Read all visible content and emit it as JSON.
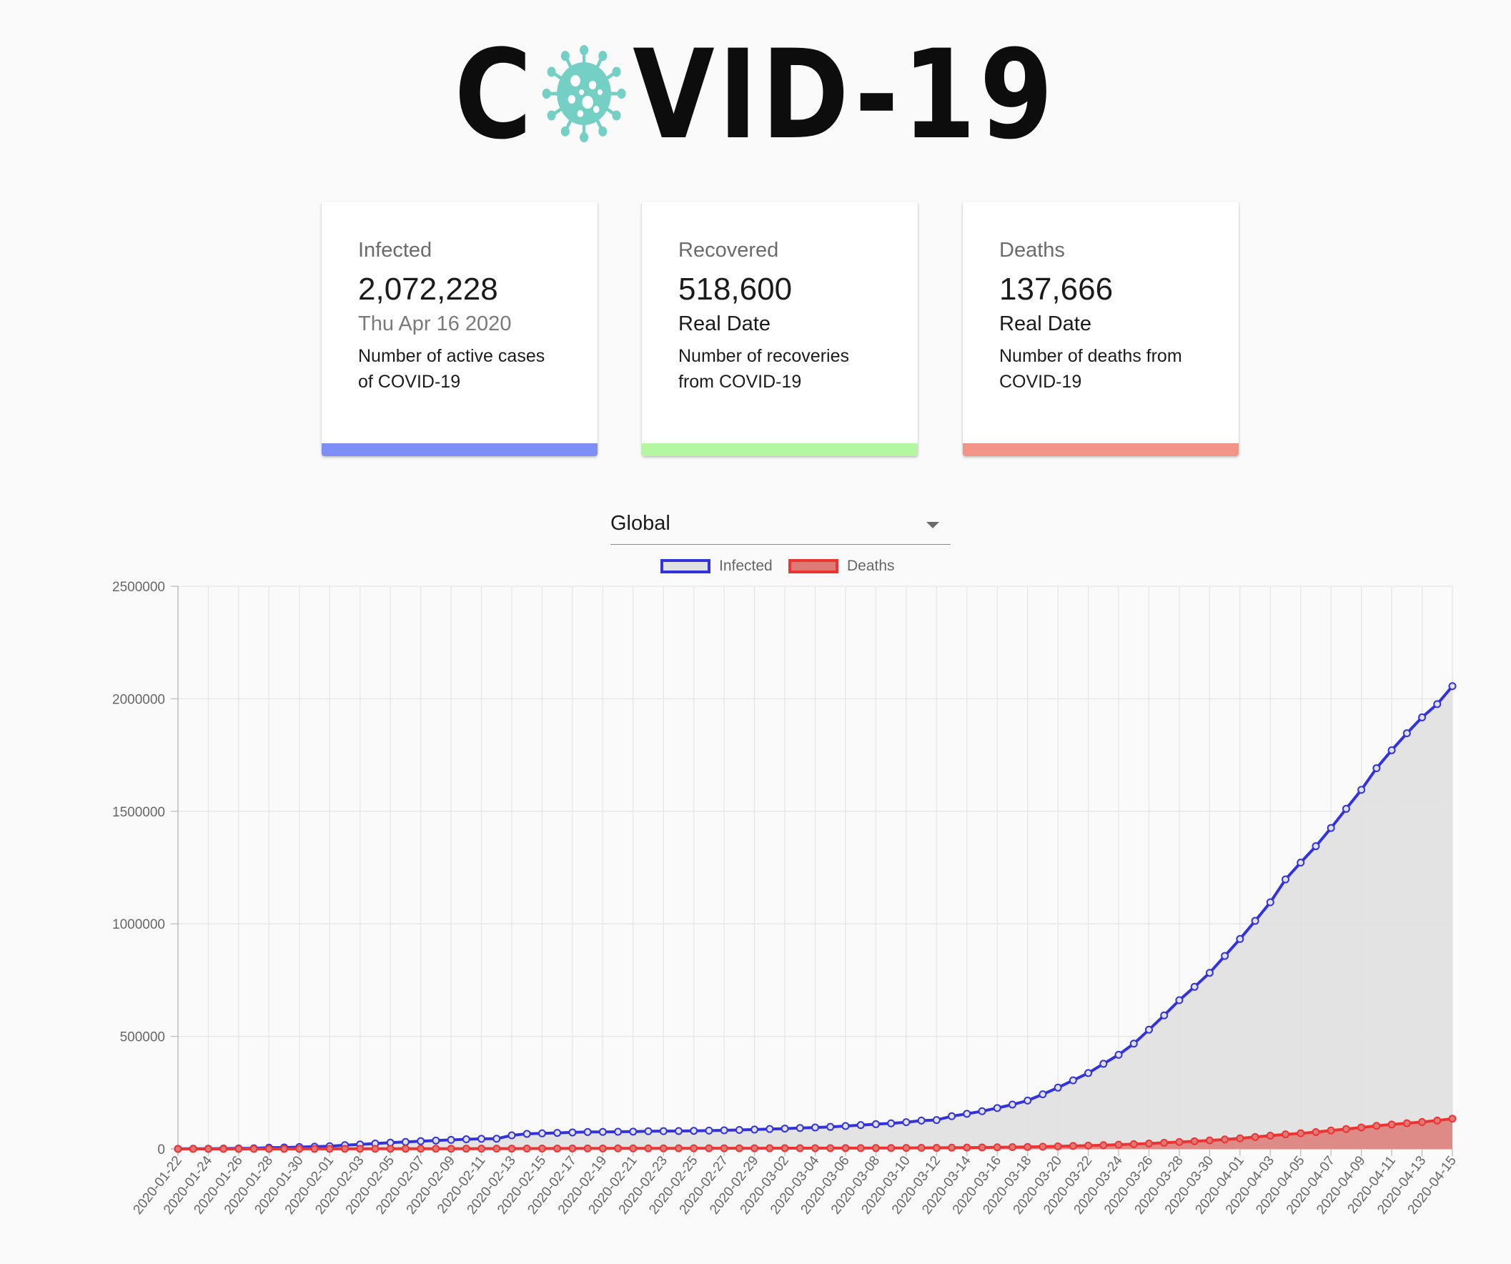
{
  "header": {
    "logo_text_left": "C",
    "logo_text_right": "VID-19",
    "logo_icon": "virus-icon",
    "logo_color": "#74cfc4"
  },
  "cards": [
    {
      "title": "Infected",
      "value": "2,072,228",
      "date": "Thu Apr 16 2020",
      "description_line1": "Number of active cases",
      "description_line2": "of COVID-19",
      "bar_color": "#7d8ff5"
    },
    {
      "title": "Recovered",
      "value": "518,600",
      "date": "Real Date",
      "description_line1": "Number of recoveries",
      "description_line2": "from COVID-19",
      "bar_color": "#b3f7a1"
    },
    {
      "title": "Deaths",
      "value": "137,666",
      "date": "Real Date",
      "description_line1": "Number of deaths from",
      "description_line2": "COVID-19",
      "bar_color": "#f29488"
    }
  ],
  "country_select": {
    "selected": "Global"
  },
  "chart_data": {
    "type": "line",
    "legend_position": "top",
    "grid": true,
    "ylim": [
      0,
      2500000
    ],
    "yticks": [
      0,
      500000,
      1000000,
      1500000,
      2000000,
      2500000
    ],
    "ytick_labels": [
      "0",
      "500000",
      "1000000",
      "1500000",
      "2000000",
      "2500000"
    ],
    "x": [
      "2020-01-22",
      "2020-01-23",
      "2020-01-24",
      "2020-01-25",
      "2020-01-26",
      "2020-01-27",
      "2020-01-28",
      "2020-01-29",
      "2020-01-30",
      "2020-01-31",
      "2020-02-01",
      "2020-02-02",
      "2020-02-03",
      "2020-02-04",
      "2020-02-05",
      "2020-02-06",
      "2020-02-07",
      "2020-02-08",
      "2020-02-09",
      "2020-02-10",
      "2020-02-11",
      "2020-02-12",
      "2020-02-13",
      "2020-02-14",
      "2020-02-15",
      "2020-02-16",
      "2020-02-17",
      "2020-02-18",
      "2020-02-19",
      "2020-02-20",
      "2020-02-21",
      "2020-02-22",
      "2020-02-23",
      "2020-02-24",
      "2020-02-25",
      "2020-02-26",
      "2020-02-27",
      "2020-02-28",
      "2020-02-29",
      "2020-03-01",
      "2020-03-02",
      "2020-03-03",
      "2020-03-04",
      "2020-03-05",
      "2020-03-06",
      "2020-03-07",
      "2020-03-08",
      "2020-03-09",
      "2020-03-10",
      "2020-03-11",
      "2020-03-12",
      "2020-03-13",
      "2020-03-14",
      "2020-03-15",
      "2020-03-16",
      "2020-03-17",
      "2020-03-18",
      "2020-03-19",
      "2020-03-20",
      "2020-03-21",
      "2020-03-22",
      "2020-03-23",
      "2020-03-24",
      "2020-03-25",
      "2020-03-26",
      "2020-03-27",
      "2020-03-28",
      "2020-03-29",
      "2020-03-30",
      "2020-03-31",
      "2020-04-01",
      "2020-04-02",
      "2020-04-03",
      "2020-04-04",
      "2020-04-05",
      "2020-04-06",
      "2020-04-07",
      "2020-04-08",
      "2020-04-09",
      "2020-04-10",
      "2020-04-11",
      "2020-04-12",
      "2020-04-13",
      "2020-04-14",
      "2020-04-15"
    ],
    "xtick_labels": [
      "2020-01-22",
      "2020-01-24",
      "2020-01-26",
      "2020-01-28",
      "2020-01-30",
      "2020-02-01",
      "2020-02-03",
      "2020-02-05",
      "2020-02-07",
      "2020-02-09",
      "2020-02-11",
      "2020-02-13",
      "2020-02-15",
      "2020-02-17",
      "2020-02-19",
      "2020-02-21",
      "2020-02-23",
      "2020-02-25",
      "2020-02-27",
      "2020-02-29",
      "2020-03-02",
      "2020-03-04",
      "2020-03-06",
      "2020-03-08",
      "2020-03-10",
      "2020-03-12",
      "2020-03-14",
      "2020-03-16",
      "2020-03-18",
      "2020-03-20",
      "2020-03-22",
      "2020-03-24",
      "2020-03-26",
      "2020-03-28",
      "2020-03-30",
      "2020-04-01",
      "2020-04-03",
      "2020-04-05",
      "2020-04-07",
      "2020-04-09",
      "2020-04-11",
      "2020-04-13",
      "2020-04-15"
    ],
    "series": [
      {
        "name": "Infected",
        "color": "#3333dd",
        "fill": "#e1e1e1",
        "values": [
          555,
          654,
          941,
          1434,
          2118,
          2927,
          5578,
          6166,
          8234,
          9927,
          12038,
          16787,
          19881,
          23892,
          27635,
          30794,
          34391,
          37120,
          40150,
          42762,
          44802,
          45221,
          60368,
          66885,
          69030,
          71224,
          73258,
          75136,
          75639,
          76197,
          76819,
          78572,
          78958,
          79561,
          80406,
          81388,
          82746,
          84112,
          86011,
          88369,
          90306,
          92840,
          95120,
          97886,
          101801,
          105847,
          109821,
          113590,
          118620,
          125875,
          128352,
          145205,
          156101,
          167454,
          181574,
          197102,
          214821,
          242570,
          272208,
          304507,
          336953,
          378235,
          418045,
          467653,
          529591,
          593291,
          660706,
          720117,
          782365,
          857487,
          932605,
          1013157,
          1095917,
          1197405,
          1272115,
          1345101,
          1426096,
          1511104,
          1595350,
          1691719,
          1771514,
          1846680,
          1917320,
          1976192,
          2056054
        ]
      },
      {
        "name": "Deaths",
        "color": "#ee3333",
        "fill": "#dd7a76",
        "values": [
          17,
          18,
          26,
          42,
          56,
          82,
          131,
          133,
          171,
          213,
          259,
          362,
          426,
          492,
          564,
          634,
          719,
          806,
          906,
          1013,
          1113,
          1118,
          1371,
          1523,
          1666,
          1770,
          1868,
          2007,
          2122,
          2247,
          2251,
          2458,
          2469,
          2629,
          2708,
          2770,
          2814,
          2872,
          2941,
          2996,
          3085,
          3160,
          3254,
          3348,
          3460,
          3558,
          3802,
          3988,
          4262,
          4615,
          4720,
          5404,
          5819,
          6440,
          7126,
          7905,
          8733,
          9867,
          11299,
          12973,
          14623,
          16497,
          18615,
          21181,
          23970,
          27198,
          30652,
          33925,
          37582,
          42107,
          46809,
          52983,
          58787,
          64606,
          69374,
          74565,
          81865,
          88338,
          95455,
          102525,
          108503,
          114090,
          119482,
          125984,
          134176
        ]
      }
    ]
  }
}
